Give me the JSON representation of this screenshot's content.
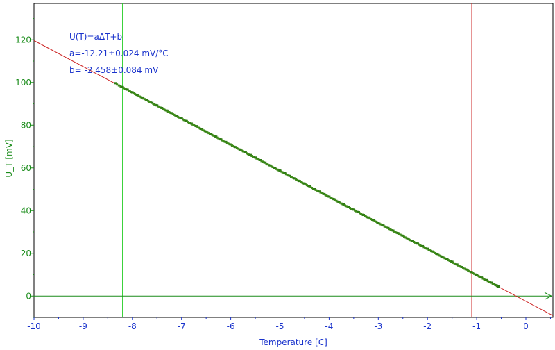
{
  "chart_data": {
    "type": "scatter",
    "xlabel": "Temperature [C]",
    "ylabel": "U_T [mV]",
    "xlim": [
      -10,
      0.55
    ],
    "ylim": [
      -10,
      137
    ],
    "x_ticks": [
      -10,
      -9,
      -8,
      -7,
      -6,
      -5,
      -4,
      -3,
      -2,
      -1,
      0
    ],
    "y_ticks": [
      0,
      20,
      40,
      60,
      80,
      100,
      120
    ],
    "grid": false,
    "annotations": [
      "U(T)=aΔT+b",
      "a=-12.21±0.024 mV/°C",
      "b= -2.458±0.084 mV"
    ],
    "fit_line": {
      "slope": -12.21,
      "intercept": -2.458
    },
    "vertical_markers": [
      {
        "x": -8.2,
        "color": "#22cc22"
      },
      {
        "x": -1.1,
        "color": "#cc2222"
      }
    ],
    "series": [
      {
        "x": [
          -8.35,
          -8.2,
          -8.1,
          -8.0,
          -7.9,
          -7.8,
          -7.7,
          -7.6,
          -7.5,
          -7.4,
          -7.3,
          -7.2,
          -7.1,
          -7.0,
          -6.9,
          -6.8,
          -6.7,
          -6.6,
          -6.5,
          -6.4,
          -6.3,
          -6.2,
          -6.1,
          -6.0,
          -5.9,
          -5.8,
          -5.7,
          -5.6,
          -5.5,
          -5.4,
          -5.3,
          -5.2,
          -5.1,
          -5.0,
          -4.9,
          -4.8,
          -4.7,
          -4.6,
          -4.5,
          -4.4,
          -4.3,
          -4.2,
          -4.1,
          -4.0,
          -3.9,
          -3.8,
          -3.7,
          -3.6,
          -3.5,
          -3.4,
          -3.3,
          -3.2,
          -3.1,
          -3.0,
          -2.9,
          -2.8,
          -2.7,
          -2.6,
          -2.5,
          -2.4,
          -2.3,
          -2.2,
          -2.1,
          -2.0,
          -1.9,
          -1.8,
          -1.7,
          -1.6,
          -1.5,
          -1.4,
          -1.3,
          -1.2,
          -1.1,
          -1.0,
          -0.9,
          -0.8,
          -0.7,
          -0.6,
          -0.55
        ],
        "y": [
          99.5,
          97.7,
          96.5,
          95.2,
          94.0,
          92.8,
          91.6,
          90.3,
          89.1,
          87.9,
          86.7,
          85.5,
          84.2,
          83.0,
          81.8,
          80.6,
          79.4,
          78.1,
          76.9,
          75.7,
          74.5,
          73.2,
          72.0,
          70.8,
          69.6,
          68.4,
          67.1,
          65.9,
          64.7,
          63.5,
          62.3,
          61.0,
          59.8,
          58.6,
          57.4,
          56.1,
          54.9,
          53.7,
          52.5,
          51.3,
          50.0,
          48.8,
          47.6,
          46.4,
          45.2,
          43.9,
          42.7,
          41.5,
          40.3,
          39.1,
          37.8,
          36.6,
          35.4,
          34.2,
          32.9,
          31.7,
          30.5,
          29.3,
          28.1,
          26.8,
          25.6,
          24.4,
          23.2,
          22.0,
          20.7,
          19.5,
          18.3,
          17.1,
          15.9,
          14.6,
          13.4,
          12.2,
          11.0,
          9.8,
          8.5,
          7.3,
          6.1,
          4.9,
          4.3
        ]
      }
    ]
  }
}
